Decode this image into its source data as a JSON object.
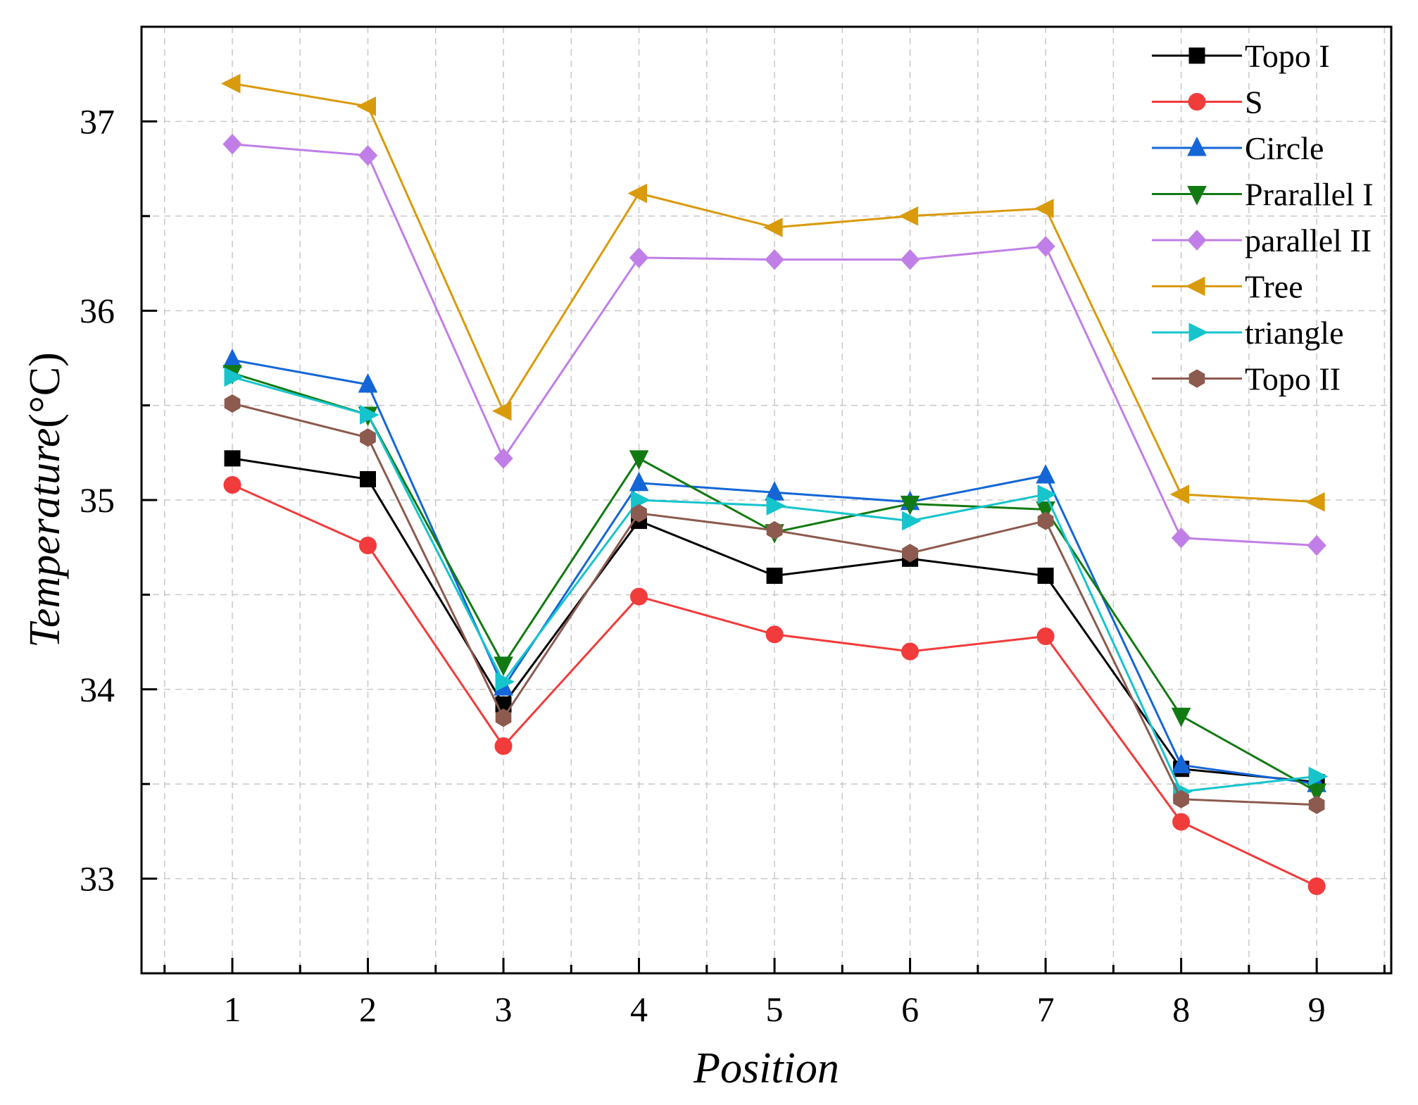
{
  "chart_data": {
    "type": "line",
    "xlabel": "Position",
    "ylabel": "Temperature(°C)",
    "ylabel_italic": "Temperature",
    "ylabel_unit": "(°C)",
    "x": [
      1,
      2,
      3,
      4,
      5,
      6,
      7,
      8,
      9
    ],
    "xlim": [
      0.33,
      9.55
    ],
    "ylim": [
      32.5,
      37.5
    ],
    "yticks": [
      33,
      34,
      35,
      36,
      37
    ],
    "xticks": [
      1,
      2,
      3,
      4,
      5,
      6,
      7,
      8,
      9
    ],
    "grid": true,
    "grid_style": "dashed",
    "legend_position": "top-right",
    "series": [
      {
        "name": "Topo I",
        "color": "#000000",
        "marker": "square",
        "values": [
          35.22,
          35.11,
          33.92,
          34.89,
          34.6,
          34.69,
          34.6,
          33.58,
          33.51
        ]
      },
      {
        "name": "S",
        "color": "#f23b3b",
        "marker": "circle",
        "values": [
          35.08,
          34.76,
          33.7,
          34.49,
          34.29,
          34.2,
          34.28,
          33.3,
          32.96
        ]
      },
      {
        "name": "Circle",
        "color": "#1466d6",
        "marker": "triangle-up",
        "values": [
          35.74,
          35.61,
          34.01,
          35.09,
          35.04,
          34.99,
          35.13,
          33.6,
          33.5
        ]
      },
      {
        "name": "Prarallel I",
        "color": "#127a12",
        "marker": "triangle-down",
        "values": [
          35.67,
          35.45,
          34.13,
          35.22,
          34.83,
          34.98,
          34.95,
          33.86,
          33.46
        ]
      },
      {
        "name": "parallel II",
        "color": "#c07fe6",
        "marker": "diamond",
        "values": [
          36.88,
          36.82,
          35.22,
          36.28,
          36.27,
          36.27,
          36.34,
          34.8,
          34.76
        ]
      },
      {
        "name": "Tree",
        "color": "#d99a0b",
        "marker": "triangle-left",
        "values": [
          37.2,
          37.08,
          35.47,
          36.62,
          36.44,
          36.5,
          36.54,
          35.03,
          34.99
        ]
      },
      {
        "name": "triangle",
        "color": "#16c4cc",
        "marker": "triangle-right",
        "values": [
          35.65,
          35.45,
          34.04,
          35.0,
          34.97,
          34.89,
          35.03,
          33.46,
          33.54
        ]
      },
      {
        "name": "Topo II",
        "color": "#8c5a4e",
        "marker": "hexagon",
        "values": [
          35.51,
          35.33,
          33.85,
          34.93,
          34.84,
          34.72,
          34.89,
          33.42,
          33.39
        ]
      }
    ]
  }
}
